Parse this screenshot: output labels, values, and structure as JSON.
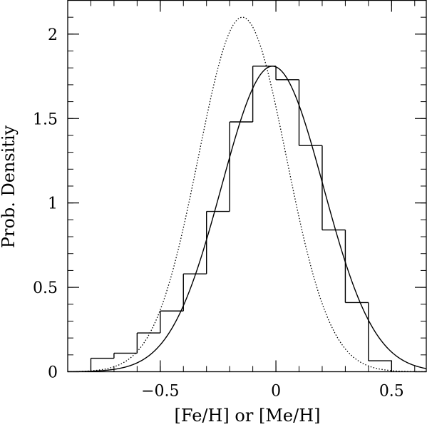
{
  "chart_data": {
    "type": "histogram",
    "xlabel": "[Fe/H] or [Me/H]",
    "ylabel": "Prob. Densitiy",
    "xlim": [
      -0.9,
      0.65
    ],
    "ylim": [
      0,
      2.2
    ],
    "x_ticks": [
      {
        "value": -0.5,
        "label": "−0.5"
      },
      {
        "value": 0,
        "label": "0"
      },
      {
        "value": 0.5,
        "label": "0.5"
      }
    ],
    "y_ticks": [
      {
        "value": 0,
        "label": "0"
      },
      {
        "value": 0.5,
        "label": "0.5"
      },
      {
        "value": 1,
        "label": "1"
      },
      {
        "value": 1.5,
        "label": "1.5"
      },
      {
        "value": 2,
        "label": "2"
      }
    ],
    "x_minor_step": 0.1,
    "y_minor_step": 0.1,
    "histogram": {
      "bin_edges": [
        -0.8,
        -0.7,
        -0.6,
        -0.5,
        -0.4,
        -0.3,
        -0.2,
        -0.1,
        0.0,
        0.1,
        0.2,
        0.3,
        0.4,
        0.5
      ],
      "values": [
        0.08,
        0.11,
        0.23,
        0.36,
        0.58,
        0.95,
        1.48,
        1.81,
        1.73,
        1.34,
        0.84,
        0.41,
        0.065
      ]
    },
    "curves": [
      {
        "style": "solid",
        "shape": "gaussian",
        "mean": -0.015,
        "sigma": 0.22,
        "peak": 1.81
      },
      {
        "style": "dotted",
        "shape": "gaussian",
        "mean": -0.145,
        "sigma": 0.19,
        "peak": 2.1
      }
    ],
    "grid": false
  }
}
